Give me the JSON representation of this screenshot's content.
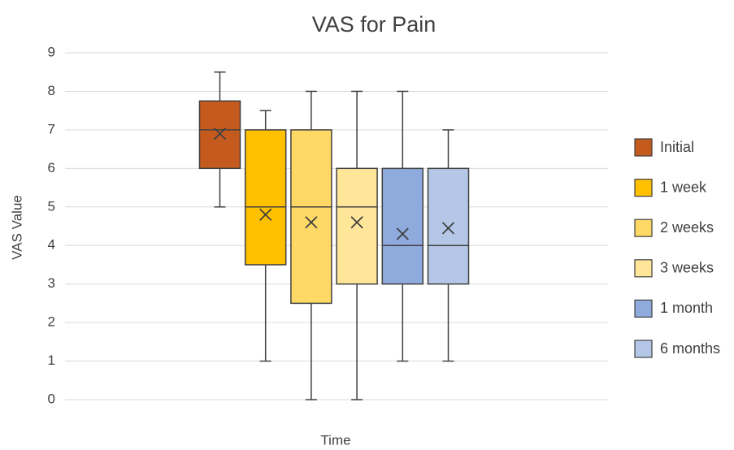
{
  "chart_data": {
    "type": "box",
    "title": "VAS for Pain",
    "y_label": "VAS Value",
    "x_label": "Time",
    "ylim": [
      0,
      9
    ],
    "yticks": [
      0,
      1,
      2,
      3,
      4,
      5,
      6,
      7,
      8,
      9
    ],
    "grid": true,
    "legend": "right",
    "series": [
      {
        "name": "Initial",
        "color": "#c55a1e",
        "min": 5,
        "q1": 6,
        "median": 7,
        "q3": 7.75,
        "max": 8.5,
        "mean": 6.9
      },
      {
        "name": "1 week",
        "color": "#ffc000",
        "min": 1,
        "q1": 3.5,
        "median": 5,
        "q3": 7,
        "max": 7.5,
        "mean": 4.8
      },
      {
        "name": "2 weeks",
        "color": "#ffd966",
        "min": 0,
        "q1": 2.5,
        "median": 5,
        "q3": 7,
        "max": 8,
        "mean": 4.6
      },
      {
        "name": "3 weeks",
        "color": "#ffe699",
        "min": 0,
        "q1": 3,
        "median": 5,
        "q3": 6,
        "max": 8,
        "mean": 4.6
      },
      {
        "name": "1 month",
        "color": "#8faadc",
        "min": 1,
        "q1": 3,
        "median": 4,
        "q3": 6,
        "max": 8,
        "mean": 4.3
      },
      {
        "name": "6 months",
        "color": "#b4c7e7",
        "min": 1,
        "q1": 3,
        "median": 4,
        "q3": 6,
        "max": 7,
        "mean": 4.45
      }
    ]
  }
}
